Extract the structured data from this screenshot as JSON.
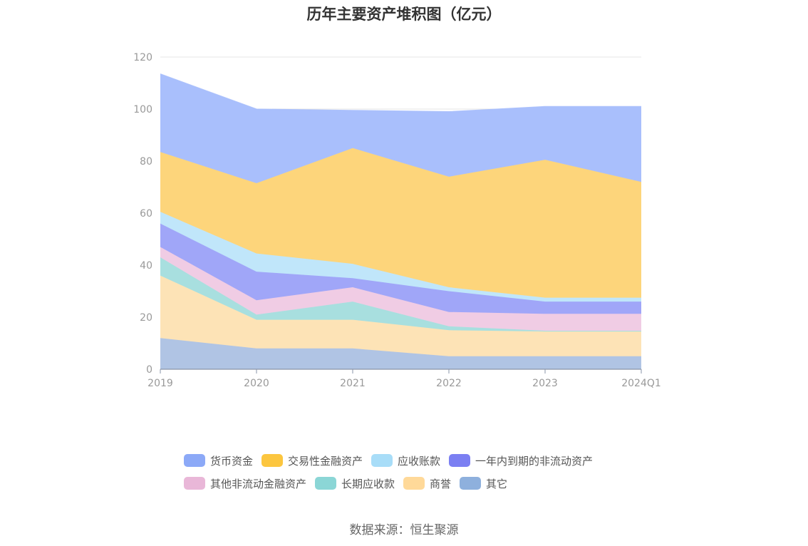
{
  "title": "历年主要资产堆积图（亿元）",
  "source": "数据来源：恒生聚源",
  "chart_data": {
    "type": "area",
    "stacked": true,
    "title": "历年主要资产堆积图（亿元）",
    "categories": [
      "2019",
      "2020",
      "2021",
      "2022",
      "2023",
      "2024Q1"
    ],
    "ylim": [
      0,
      120
    ],
    "yticks": [
      0,
      20,
      40,
      60,
      80,
      100,
      120
    ],
    "grid": true,
    "legend_position": "bottom",
    "series": [
      {
        "name": "其它",
        "color": "#8eb0dd",
        "legend_color": "#8eb0dd",
        "fill_color": "#b0c4e4",
        "values": [
          12,
          8,
          8,
          5,
          5,
          5
        ]
      },
      {
        "name": "商誉",
        "color": "#ffd999",
        "legend_color": "#ffd999",
        "fill_color": "#fde3b6",
        "values": [
          24,
          11,
          11,
          10,
          9.5,
          9.5
        ]
      },
      {
        "name": "长期应收款",
        "color": "#8bd6d6",
        "legend_color": "#8bd6d6",
        "fill_color": "#a8dfdf",
        "values": [
          7,
          2,
          7,
          1.5,
          0.3,
          0.3
        ]
      },
      {
        "name": "其他非流动金融资产",
        "color": "#e9b7d8",
        "legend_color": "#e9b7d8",
        "fill_color": "#f0cce4",
        "values": [
          4,
          5.5,
          5.5,
          5.5,
          6.5,
          6.5
        ]
      },
      {
        "name": "一年内到期的非流动资产",
        "color": "#7b7ff2",
        "legend_color": "#7b7ff2",
        "fill_color": "#a0a6f8",
        "values": [
          9,
          11,
          3.5,
          8,
          4.7,
          4.7
        ]
      },
      {
        "name": "应收账款",
        "color": "#a8ddf8",
        "legend_color": "#a8ddf8",
        "fill_color": "#c0e6fa",
        "values": [
          4.5,
          7,
          5.5,
          1.5,
          1.5,
          1.5
        ]
      },
      {
        "name": "交易性金融资产",
        "color": "#fcc63f",
        "legend_color": "#fcc63f",
        "fill_color": "#fdd57b",
        "values": [
          23,
          27,
          44.5,
          42.5,
          53,
          44.5
        ]
      },
      {
        "name": "货币资金",
        "color": "#8ca9f7",
        "legend_color": "#8ca9f7",
        "fill_color": "#a9bffc",
        "values": [
          30,
          28.5,
          14.5,
          25,
          20.5,
          29
        ]
      }
    ],
    "legend_order": [
      "货币资金",
      "交易性金融资产",
      "应收账款",
      "一年内到期的非流动资产",
      "其他非流动金融资产",
      "长期应收款",
      "商誉",
      "其它"
    ]
  }
}
